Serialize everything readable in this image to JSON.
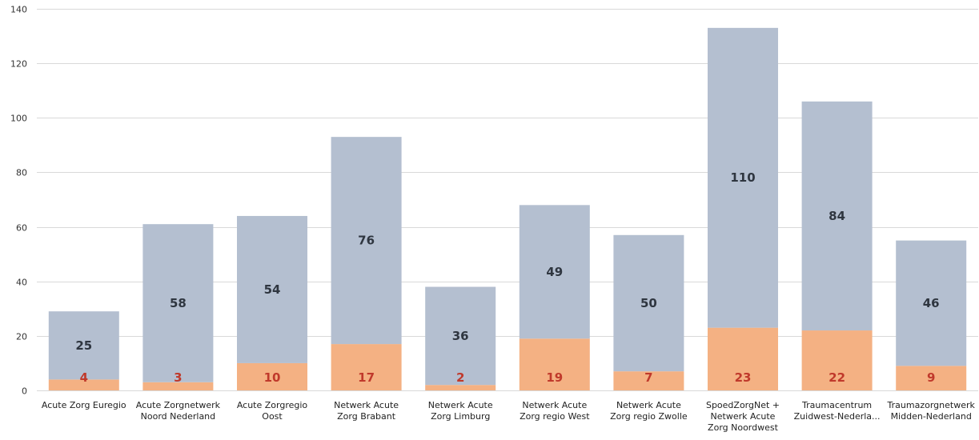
{
  "chart_data": {
    "type": "bar",
    "stacked": true,
    "categories": [
      [
        "Acute Zorg Euregio"
      ],
      [
        "Acute Zorgnetwerk",
        "Noord Nederland"
      ],
      [
        "Acute Zorgregio",
        "Oost"
      ],
      [
        "Netwerk Acute",
        "Zorg Brabant"
      ],
      [
        "Netwerk Acute",
        "Zorg Limburg"
      ],
      [
        "Netwerk Acute",
        "Zorg regio West"
      ],
      [
        "Netwerk Acute",
        "Zorg regio Zwolle"
      ],
      [
        "SpoedZorgNet +",
        "Netwerk Acute",
        "Zorg Noordwest"
      ],
      [
        "Traumacentrum",
        "Zuidwest-Nederla..."
      ],
      [
        "Traumazorgnetwerk",
        "Midden-Nederland"
      ]
    ],
    "series": [
      {
        "values": [
          4,
          3,
          10,
          17,
          2,
          19,
          7,
          23,
          22,
          9
        ],
        "color": "#f4b183",
        "label_color": "#c0392b"
      },
      {
        "values": [
          25,
          58,
          54,
          76,
          36,
          49,
          50,
          110,
          84,
          46
        ],
        "color": "#b4bfd0",
        "label_color": "#2f3640"
      }
    ],
    "ylim": [
      0,
      140
    ],
    "yticks": [
      0,
      20,
      40,
      60,
      80,
      100,
      120,
      140
    ],
    "grid": true,
    "title": "",
    "xlabel": "",
    "ylabel": ""
  }
}
